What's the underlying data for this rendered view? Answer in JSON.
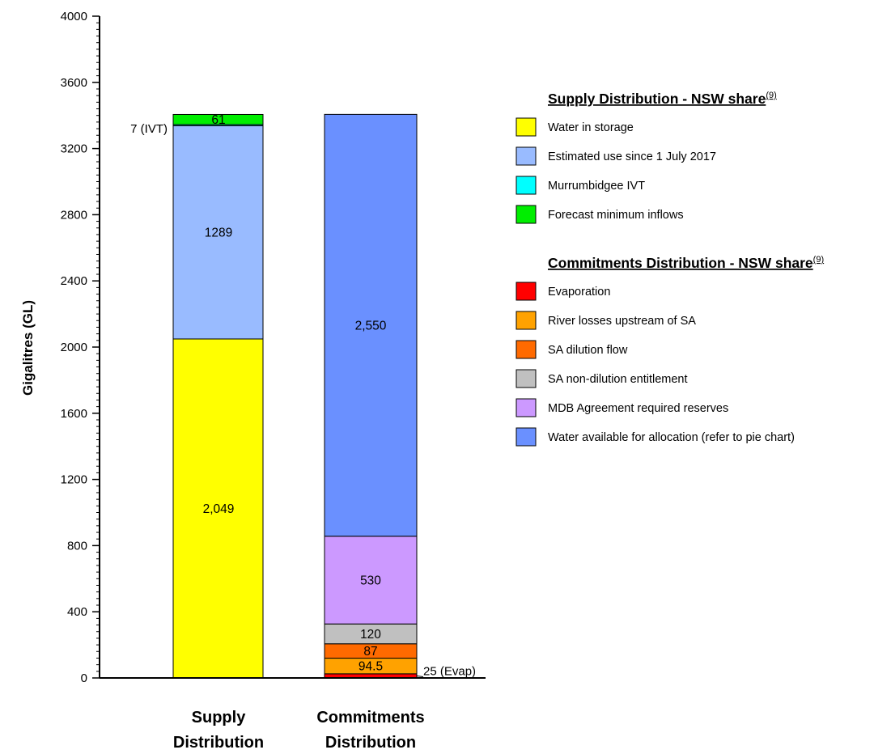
{
  "chart_data": {
    "type": "bar",
    "stacked": true,
    "ylabel": "Gigalitres (GL)",
    "ylim": [
      0,
      4000
    ],
    "yticks": [
      0,
      400,
      800,
      1200,
      1600,
      2000,
      2400,
      2800,
      3200,
      3600,
      4000
    ],
    "ytick_labels": [
      "0",
      "400",
      "800",
      "1200",
      "1600",
      "2000",
      "2400",
      "2800",
      "3200",
      "3600",
      "4000"
    ],
    "categories": [
      "Supply Distribution",
      "Commitments Distribution"
    ],
    "category_labels": [
      [
        "Supply",
        "Distribution"
      ],
      [
        "Commitments",
        "Distribution"
      ]
    ],
    "series": [
      {
        "name": "Water in storage",
        "category": 0,
        "value": 2049,
        "color": "#ffff00",
        "label": "2,049",
        "label_pos": "inside"
      },
      {
        "name": "Estimated use since 1 July 2017",
        "category": 0,
        "value": 1289,
        "color": "#99bbff",
        "label": "1289",
        "label_pos": "inside"
      },
      {
        "name": "Murrumbidgee IVT",
        "category": 0,
        "value": 7,
        "color": "#00ffff",
        "label": "7 (IVT)",
        "label_pos": "left"
      },
      {
        "name": "Forecast minimum inflows",
        "category": 0,
        "value": 61,
        "color": "#00ee00",
        "label": "61",
        "label_pos": "inside"
      },
      {
        "name": "Evaporation",
        "category": 1,
        "value": 25,
        "color": "#ff0000",
        "label": "25 (Evap)",
        "label_pos": "right"
      },
      {
        "name": "River losses upstream of SA",
        "category": 1,
        "value": 94.5,
        "color": "#ffa200",
        "label": "94.5",
        "label_pos": "inside"
      },
      {
        "name": "SA dilution flow",
        "category": 1,
        "value": 87,
        "color": "#ff6a00",
        "label": "87",
        "label_pos": "inside"
      },
      {
        "name": "SA non-dilution entitlement",
        "category": 1,
        "value": 120,
        "color": "#c0c0c0",
        "label": "120",
        "label_pos": "inside"
      },
      {
        "name": "MDB Agreement required reserves",
        "category": 1,
        "value": 530,
        "color": "#cc99ff",
        "label": "530",
        "label_pos": "inside"
      },
      {
        "name": "Water available for allocation (refer to pie chart)",
        "category": 1,
        "value": 2550,
        "color": "#6a90ff",
        "label": "2,550",
        "label_pos": "inside"
      }
    ],
    "legend": [
      {
        "title": "Supply Distribution - NSW share",
        "superscript": "(9)",
        "items": [
          {
            "label": "Water in storage",
            "color": "#ffff00"
          },
          {
            "label": "Estimated use since 1 July 2017",
            "color": "#99bbff"
          },
          {
            "label": "Murrumbidgee IVT",
            "color": "#00ffff"
          },
          {
            "label": "Forecast minimum inflows",
            "color": "#00ee00"
          }
        ]
      },
      {
        "title": "Commitments Distribution - NSW share",
        "superscript": "(9)",
        "items": [
          {
            "label": "Evaporation",
            "color": "#ff0000"
          },
          {
            "label": "River losses upstream of SA",
            "color": "#ffa200"
          },
          {
            "label": "SA dilution flow",
            "color": "#ff6a00"
          },
          {
            "label": "SA non-dilution entitlement",
            "color": "#c0c0c0"
          },
          {
            "label": "MDB Agreement required reserves",
            "color": "#cc99ff"
          },
          {
            "label": "Water available for allocation (refer to pie chart)",
            "color": "#6a90ff"
          }
        ]
      }
    ],
    "legend_placement": "right"
  }
}
